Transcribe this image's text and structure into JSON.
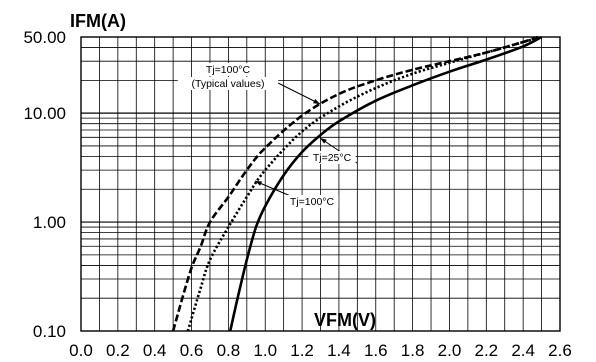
{
  "chart_data": {
    "type": "line",
    "xlabel": "VFM(V)",
    "ylabel": "IFM(A)",
    "xlim": [
      0.0,
      2.6
    ],
    "ylim": [
      0.1,
      50
    ],
    "yscale": "log",
    "grid": true,
    "x_ticks": [
      "0.0",
      "0.2",
      "0.4",
      "0.6",
      "0.8",
      "1.0",
      "1.2",
      "1.4",
      "1.6",
      "1.8",
      "2.0",
      "2.2",
      "2.4",
      "2.6"
    ],
    "y_ticks": [
      {
        "value": 0.1,
        "label": "0.10"
      },
      {
        "value": 1,
        "label": "1.00"
      },
      {
        "value": 10,
        "label": "10.00"
      },
      {
        "value": 50,
        "label": "50.00"
      }
    ],
    "series": [
      {
        "name": "Tj=100°C (Typical values)",
        "style": "dashed",
        "points": [
          [
            0.5,
            0.1
          ],
          [
            0.55,
            0.2
          ],
          [
            0.6,
            0.38
          ],
          [
            0.65,
            0.6
          ],
          [
            0.7,
            1.0
          ],
          [
            0.8,
            1.7
          ],
          [
            0.9,
            3.0
          ],
          [
            1.0,
            4.8
          ],
          [
            1.2,
            9.5
          ],
          [
            1.4,
            15
          ],
          [
            1.6,
            20
          ],
          [
            1.8,
            25
          ],
          [
            2.0,
            30
          ],
          [
            2.2,
            36
          ],
          [
            2.4,
            45
          ],
          [
            2.48,
            50
          ]
        ]
      },
      {
        "name": "Tj=100°C",
        "style": "dotted",
        "points": [
          [
            0.58,
            0.1
          ],
          [
            0.65,
            0.25
          ],
          [
            0.7,
            0.45
          ],
          [
            0.8,
            0.9
          ],
          [
            0.9,
            1.7
          ],
          [
            1.0,
            3.0
          ],
          [
            1.2,
            6.8
          ],
          [
            1.4,
            11.5
          ],
          [
            1.6,
            17
          ],
          [
            1.8,
            23
          ],
          [
            2.0,
            29
          ],
          [
            2.2,
            36
          ],
          [
            2.4,
            45
          ],
          [
            2.5,
            50
          ]
        ]
      },
      {
        "name": "Tj=25°C",
        "style": "solid",
        "points": [
          [
            0.81,
            0.1
          ],
          [
            0.85,
            0.2
          ],
          [
            0.9,
            0.45
          ],
          [
            0.95,
            0.9
          ],
          [
            1.0,
            1.4
          ],
          [
            1.1,
            2.7
          ],
          [
            1.2,
            4.4
          ],
          [
            1.3,
            6.3
          ],
          [
            1.4,
            8.4
          ],
          [
            1.6,
            13
          ],
          [
            1.8,
            18
          ],
          [
            2.0,
            24
          ],
          [
            2.2,
            31
          ],
          [
            2.4,
            41
          ],
          [
            2.5,
            50
          ]
        ]
      }
    ],
    "annotations": [
      {
        "text": "Tj=100°C",
        "series": 0
      },
      {
        "text": "(Typical values)",
        "series": 0
      },
      {
        "text": "Tj=25°C",
        "series": 2
      },
      {
        "text": "Tj=100°C",
        "series": 1
      }
    ]
  }
}
